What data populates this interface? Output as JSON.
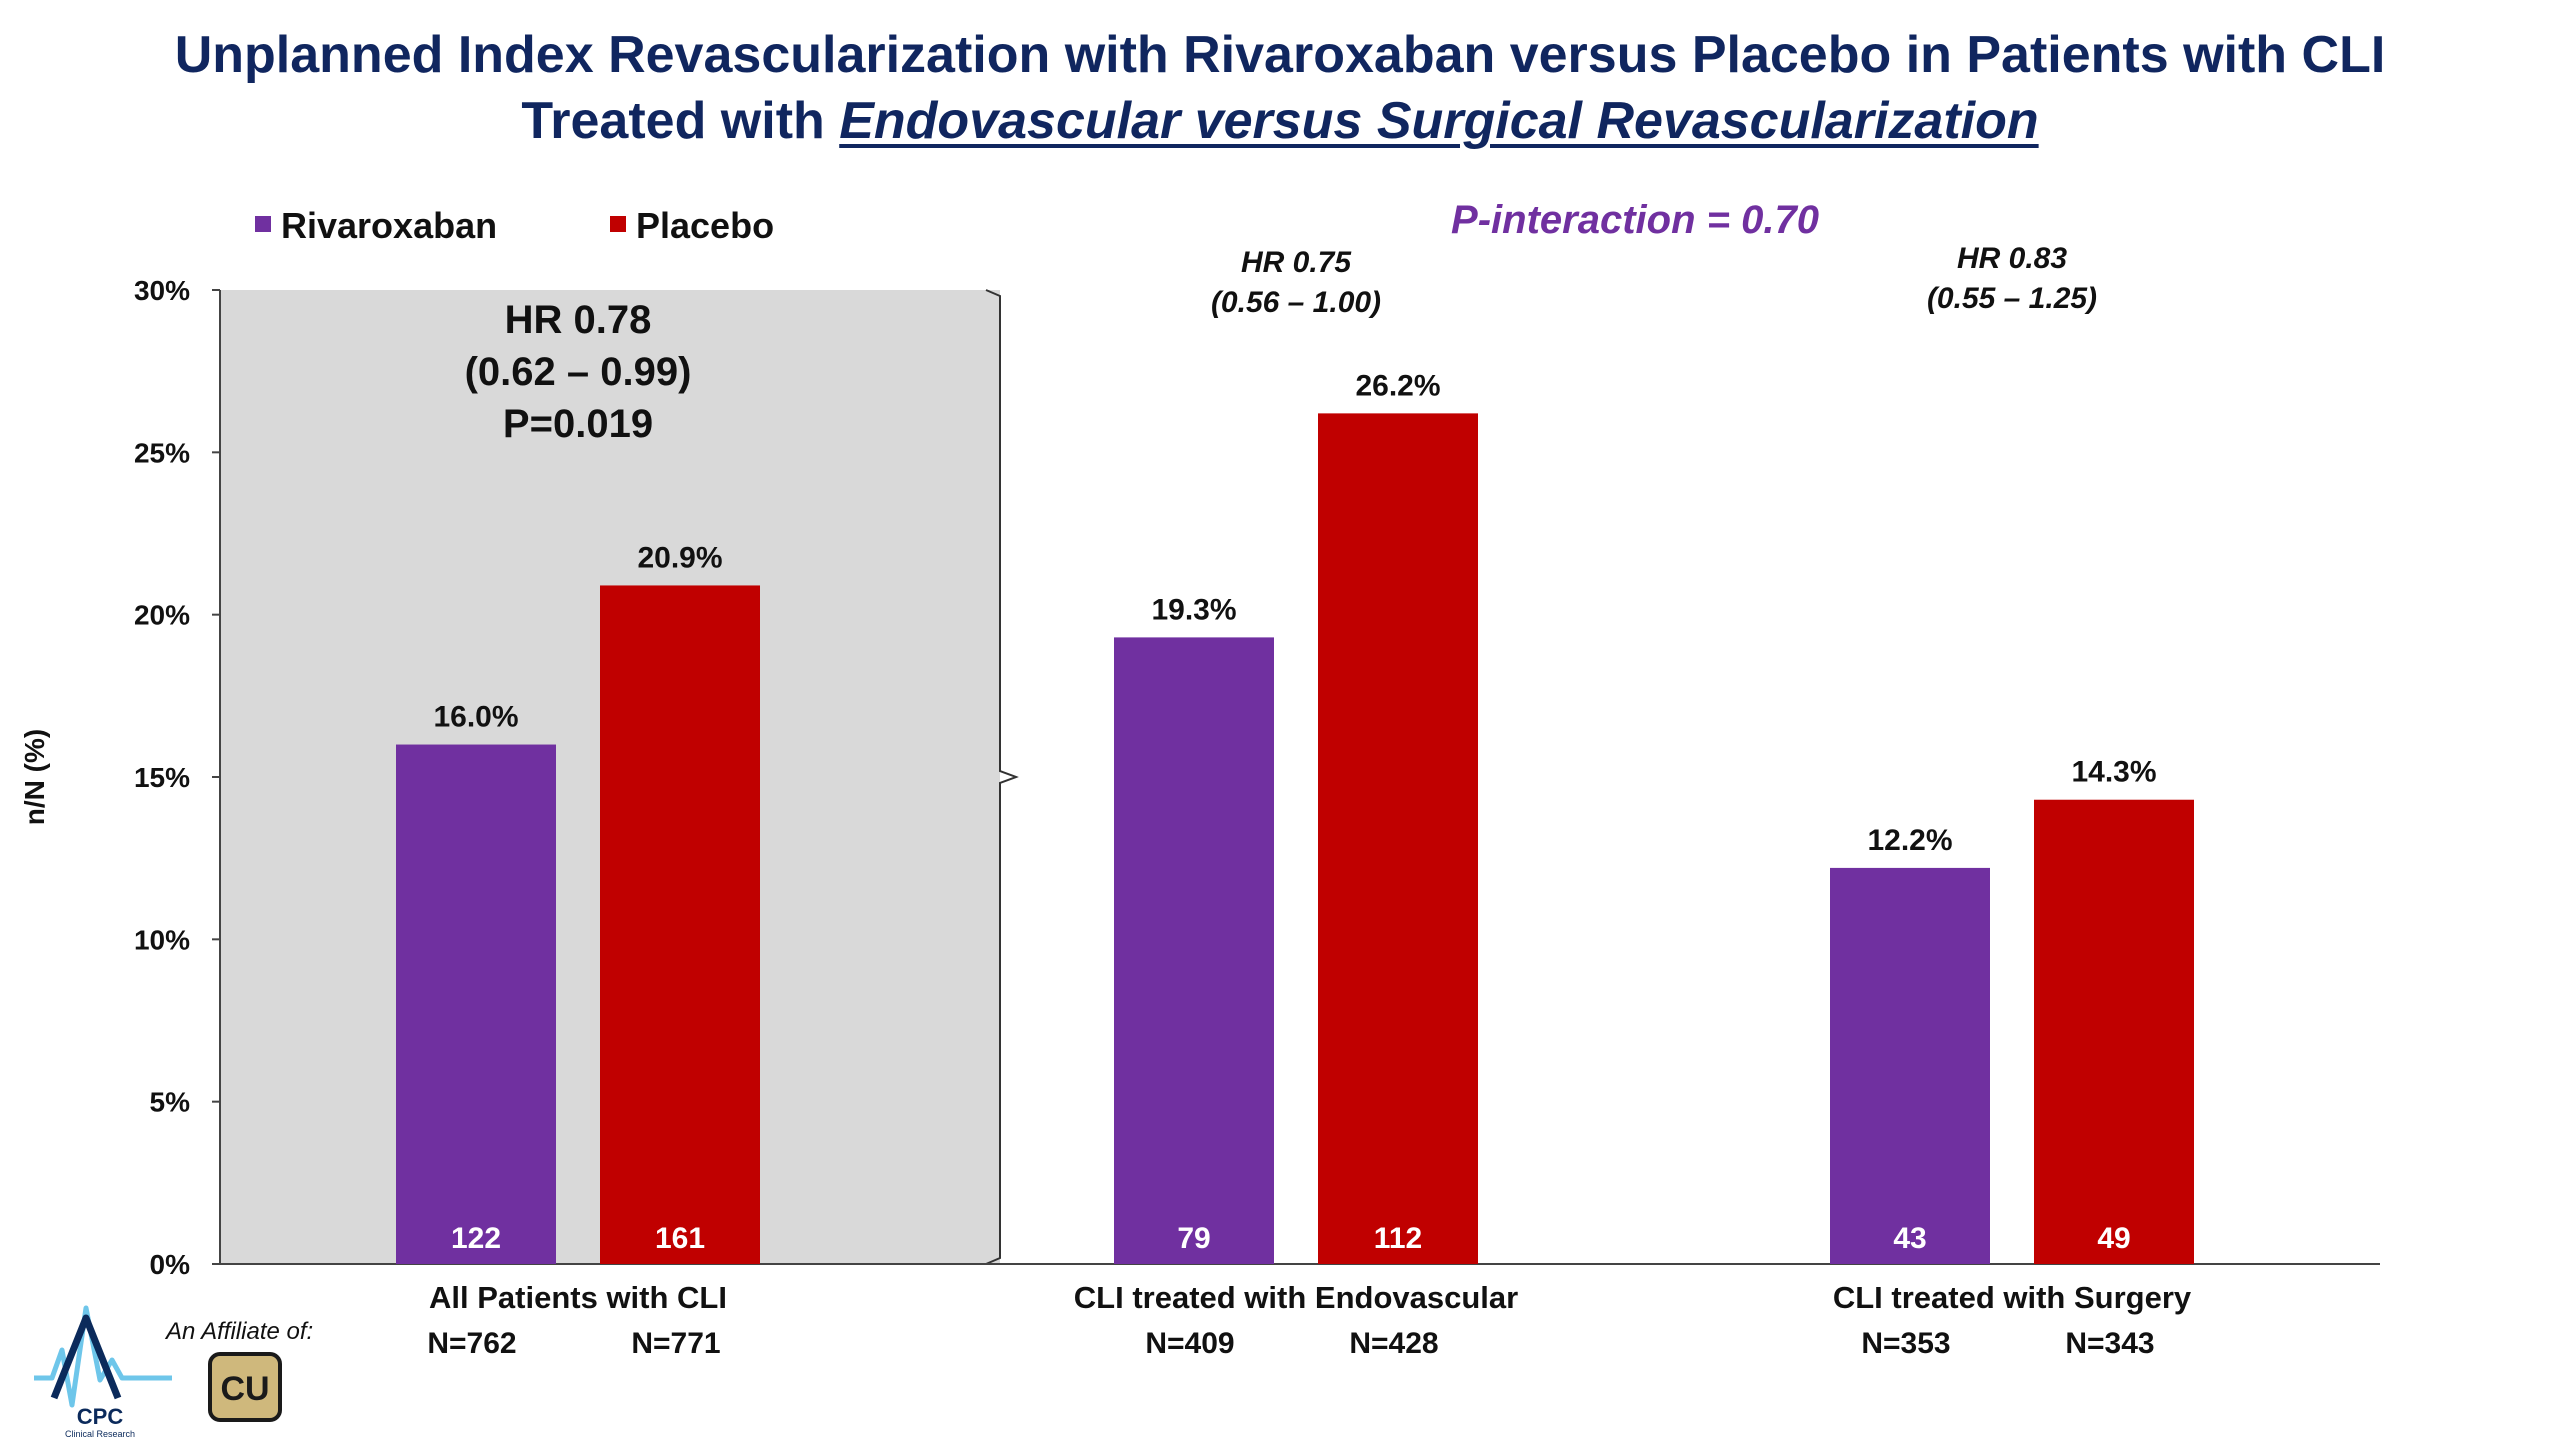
{
  "slide": {
    "title_line1": "Unplanned Index Revascularization with Rivaroxaban versus Placebo in Patients with CLI",
    "title_line2_prefix": "Treated with ",
    "title_line2_emphasis": "Endovascular versus Surgical Revascularization"
  },
  "chart_data": {
    "type": "bar",
    "ylabel": "n/N (%)",
    "ylim": [
      0,
      30
    ],
    "yticks": [
      "0%",
      "5%",
      "10%",
      "15%",
      "20%",
      "25%",
      "30%"
    ],
    "legend_placement": "top-left",
    "grid": false,
    "p_interaction": "P-interaction = 0.70",
    "series": [
      {
        "name": "Rivaroxaban",
        "color": "#7030a0"
      },
      {
        "name": "Placebo",
        "color": "#c00000"
      }
    ],
    "groups": [
      {
        "category": "All Patients with CLI",
        "highlighted": true,
        "hr_lines": [
          "HR 0.78",
          "(0.62 – 0.99)",
          "P=0.019"
        ],
        "bars": [
          {
            "series": "Rivaroxaban",
            "value": 16.0,
            "label": "16.0%",
            "n": "122",
            "N": "N=762"
          },
          {
            "series": "Placebo",
            "value": 20.9,
            "label": "20.9%",
            "n": "161",
            "N": "N=771"
          }
        ]
      },
      {
        "category": "CLI treated with Endovascular",
        "highlighted": false,
        "hr_lines": [
          "HR 0.75",
          "(0.56 – 1.00)"
        ],
        "bars": [
          {
            "series": "Rivaroxaban",
            "value": 19.3,
            "label": "19.3%",
            "n": "79",
            "N": "N=409"
          },
          {
            "series": "Placebo",
            "value": 26.2,
            "label": "26.2%",
            "n": "112",
            "N": "N=428"
          }
        ]
      },
      {
        "category": "CLI treated with Surgery",
        "highlighted": false,
        "hr_lines": [
          "HR 0.83",
          "(0.55 – 1.25)"
        ],
        "bars": [
          {
            "series": "Rivaroxaban",
            "value": 12.2,
            "label": "12.2%",
            "n": "43",
            "N": "N=353"
          },
          {
            "series": "Placebo",
            "value": 14.3,
            "label": "14.3%",
            "n": "49",
            "N": "N=343"
          }
        ]
      }
    ]
  },
  "branding": {
    "cpc_logo_text": "CPC",
    "cpc_logo_subtext": "Clinical Research",
    "affiliate_text": "An Affiliate of:",
    "cu_logo_text": "CU"
  }
}
